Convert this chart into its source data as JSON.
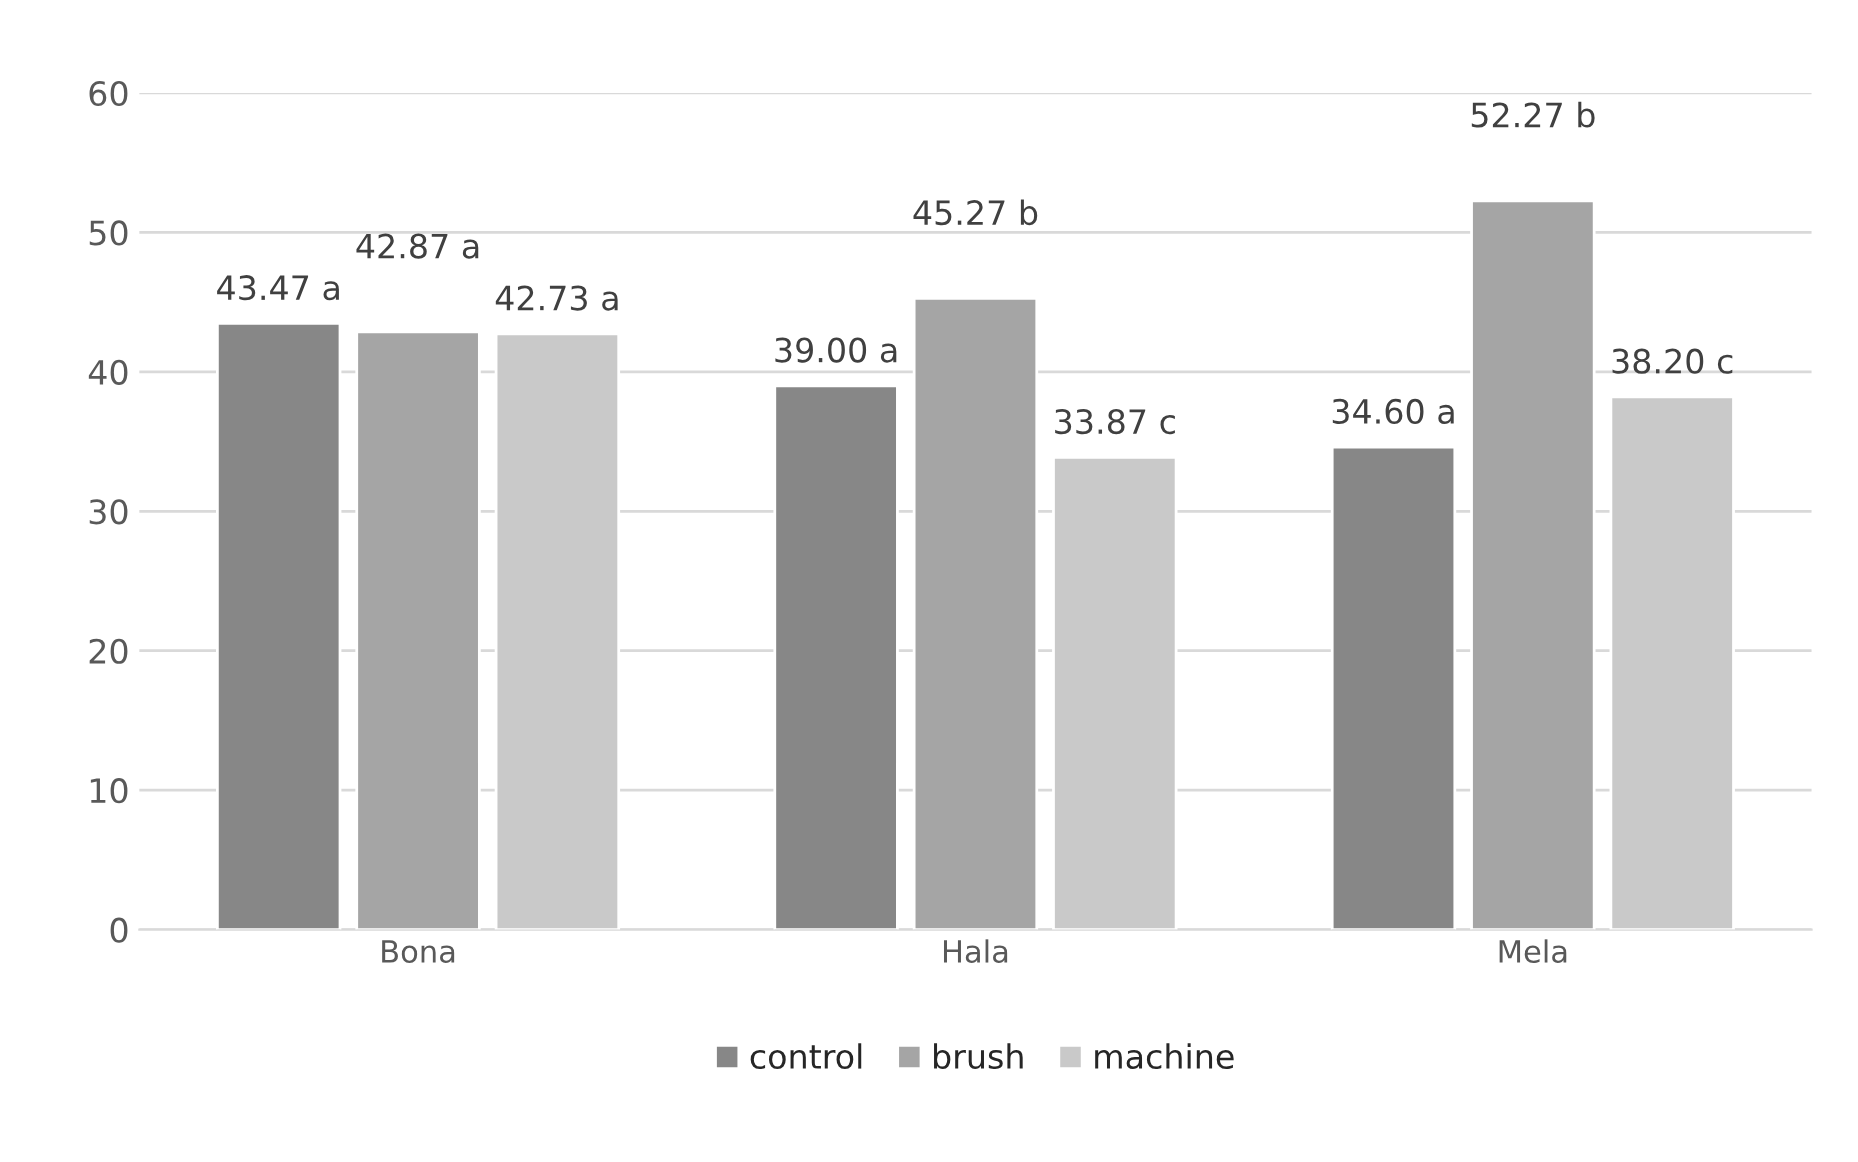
{
  "chart_data": {
    "type": "bar",
    "categories": [
      "Bona",
      "Hala",
      "Mela"
    ],
    "series": [
      {
        "name": "control",
        "color": "#878787",
        "values": [
          43.47,
          39.0,
          34.6
        ],
        "value_labels": [
          "43.47 a",
          "39.00 a",
          "34.60 a"
        ]
      },
      {
        "name": "brush",
        "color": "#a5a5a5",
        "values": [
          42.87,
          45.27,
          52.27
        ],
        "value_labels": [
          "42.87 a",
          "45.27 b",
          "52.27 b"
        ]
      },
      {
        "name": "machine",
        "color": "#c9c9c9",
        "values": [
          42.73,
          33.87,
          38.2
        ],
        "value_labels": [
          "42.73 a",
          "33.87 c",
          "38.20 c"
        ]
      }
    ],
    "ylim": [
      0,
      60
    ],
    "yticks": [
      0,
      10,
      20,
      30,
      40,
      50,
      60
    ],
    "grid": "y",
    "legend": "bottom"
  }
}
